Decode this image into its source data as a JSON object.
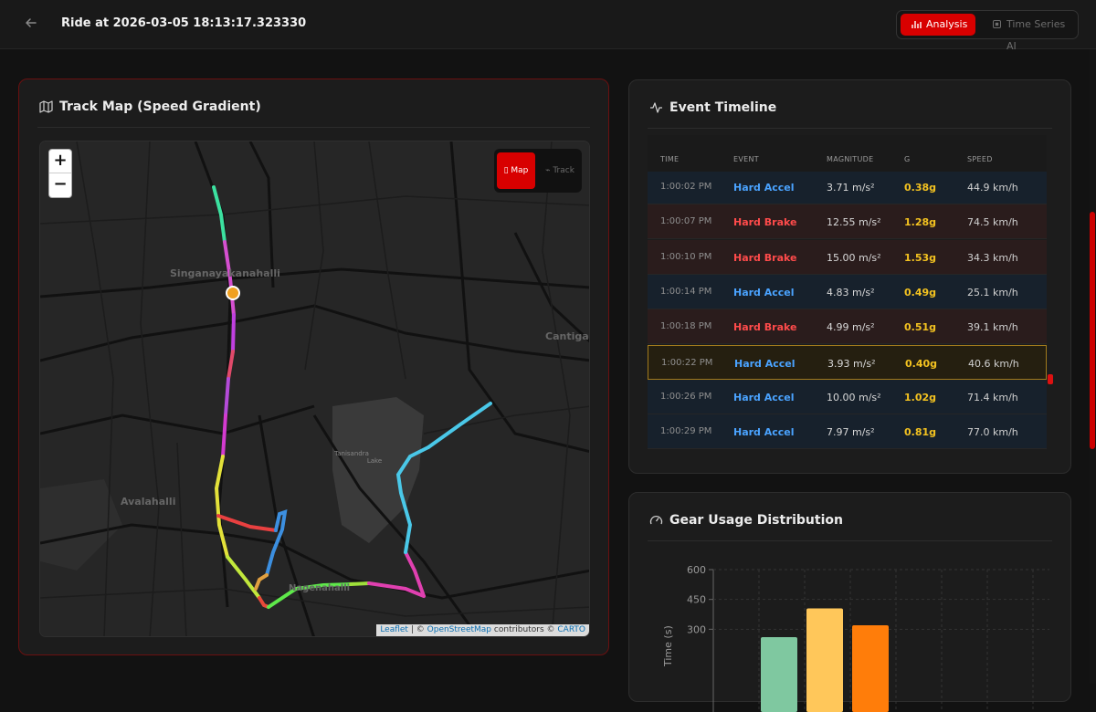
{
  "header": {
    "back_icon": "arrow-left-icon",
    "title": "Ride at 2026-03-05 18:13:17.323330",
    "tabs": [
      {
        "label": "Analysis",
        "icon": "bar-chart-icon",
        "active": true
      },
      {
        "label": "Time Series AI",
        "icon": "chip-icon",
        "active": false
      }
    ]
  },
  "map_card": {
    "title": "Track Map (Speed Gradient)",
    "icon": "map-icon",
    "zoom_in": "+",
    "zoom_out": "−",
    "view_toggle": {
      "map": "Map",
      "track": "Track",
      "active": "Map"
    },
    "places": [
      "Singanayakanahalli",
      "Avalahalli",
      "Cantiga",
      "Nagenahalli"
    ],
    "attribution": {
      "leaflet": "Leaflet",
      "sep": "|",
      "copy1": "©",
      "osm": "OpenStreetMap",
      "contrib": "contributors ©",
      "carto": "CARTO"
    }
  },
  "events_card": {
    "title": "Event Timeline",
    "icon": "activity-icon",
    "columns": [
      "TIME",
      "EVENT",
      "MAGNITUDE",
      "G",
      "SPEED"
    ],
    "rows": [
      {
        "time": "1:00:02 PM",
        "event": "Hard Accel",
        "type": "accel",
        "magnitude": "3.71 m/s²",
        "g": "0.38g",
        "speed": "44.9 km/h"
      },
      {
        "time": "1:00:07 PM",
        "event": "Hard Brake",
        "type": "brake",
        "magnitude": "12.55 m/s²",
        "g": "1.28g",
        "speed": "74.5 km/h"
      },
      {
        "time": "1:00:10 PM",
        "event": "Hard Brake",
        "type": "brake",
        "magnitude": "15.00 m/s²",
        "g": "1.53g",
        "speed": "34.3 km/h"
      },
      {
        "time": "1:00:14 PM",
        "event": "Hard Accel",
        "type": "accel",
        "magnitude": "4.83 m/s²",
        "g": "0.49g",
        "speed": "25.1 km/h"
      },
      {
        "time": "1:00:18 PM",
        "event": "Hard Brake",
        "type": "brake",
        "magnitude": "4.99 m/s²",
        "g": "0.51g",
        "speed": "39.1 km/h"
      },
      {
        "time": "1:00:22 PM",
        "event": "Hard Accel",
        "type": "accel",
        "magnitude": "3.93 m/s²",
        "g": "0.40g",
        "speed": "40.6 km/h",
        "selected": true
      },
      {
        "time": "1:00:26 PM",
        "event": "Hard Accel",
        "type": "accel",
        "magnitude": "10.00 m/s²",
        "g": "1.02g",
        "speed": "71.4 km/h"
      },
      {
        "time": "1:00:29 PM",
        "event": "Hard Accel",
        "type": "accel",
        "magnitude": "7.97 m/s²",
        "g": "0.81g",
        "speed": "77.0 km/h"
      }
    ]
  },
  "gear_card": {
    "title": "Gear Usage Distribution",
    "icon": "gauge-icon"
  },
  "chart_data": {
    "type": "bar",
    "title": "",
    "xlabel": "",
    "ylabel": "Time (s)",
    "yticks": [
      300,
      450,
      600
    ],
    "ylim": [
      0,
      600
    ],
    "values": [
      260,
      405,
      320
    ],
    "colors": [
      "#7fc8a0",
      "#ffc75a",
      "#ff7d0a"
    ],
    "grid": true
  },
  "colors": {
    "accent": "#d80000",
    "accel": "#4aa3ff",
    "brake": "#ff4b4b",
    "g_value": "#f3c220"
  }
}
